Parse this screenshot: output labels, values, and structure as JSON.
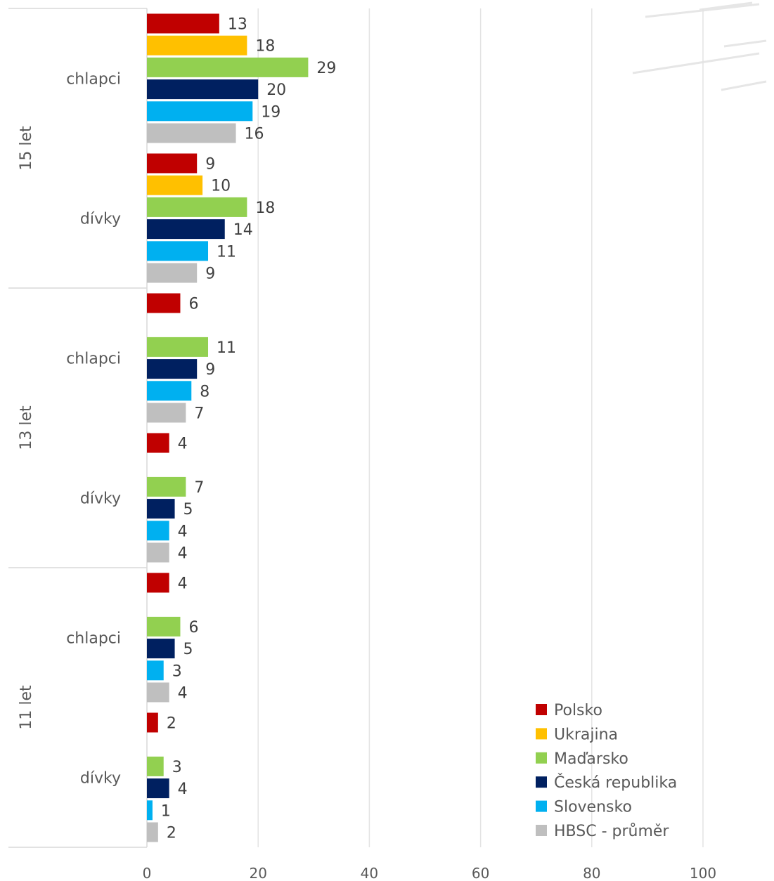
{
  "chart_data": {
    "type": "bar",
    "orientation": "horizontal",
    "title": "",
    "xlabel": "",
    "ylabel": "",
    "xlim": [
      0,
      100
    ],
    "x_ticks": [
      0,
      20,
      40,
      60,
      80,
      100
    ],
    "grid": true,
    "legend_position": "bottom-right",
    "groups": [
      "15 let",
      "13 let",
      "11 let"
    ],
    "subgroups": [
      "chlapci",
      "dívky"
    ],
    "series": [
      {
        "name": "Polsko",
        "color": "#c00000",
        "values": [
          13,
          9,
          6,
          4,
          4,
          2
        ]
      },
      {
        "name": "Ukrajina",
        "color": "#ffc000",
        "values": [
          18,
          10,
          null,
          null,
          null,
          null
        ]
      },
      {
        "name": "Maďarsko",
        "color": "#92d050",
        "values": [
          29,
          18,
          11,
          7,
          6,
          3
        ]
      },
      {
        "name": "Česká republika",
        "color": "#002060",
        "values": [
          20,
          14,
          9,
          5,
          5,
          4
        ]
      },
      {
        "name": "Slovensko",
        "color": "#00b0f0",
        "values": [
          19,
          11,
          8,
          4,
          3,
          1
        ]
      },
      {
        "name": "HBSC - průměr",
        "color": "#bfbfbf",
        "values": [
          16,
          9,
          7,
          4,
          4,
          2
        ]
      }
    ]
  }
}
